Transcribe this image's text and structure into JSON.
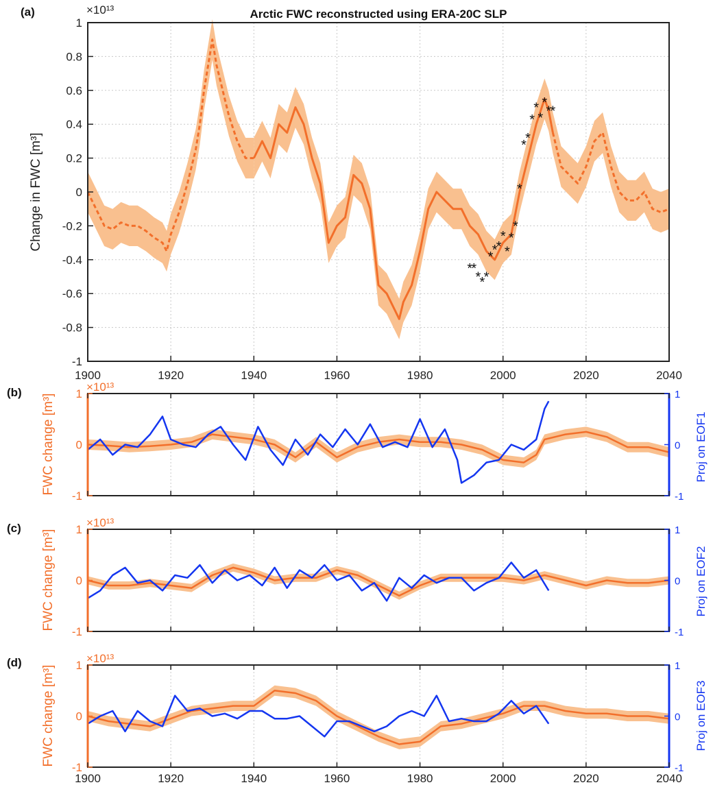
{
  "colors": {
    "fwc": "#f26f2b",
    "fwc_band": "#f9c08f",
    "proj": "#1436f0",
    "axis": "#222222",
    "grid": "#c8c8c8",
    "marker": "#111111"
  },
  "chart_data": [
    {
      "panel": "(a)",
      "type": "line",
      "title": "Arctic FWC reconstructed using ERA-20C SLP",
      "ylabel": "Change in FWC [m³]",
      "yexponent": "×10¹³",
      "xlim": [
        1900,
        2040
      ],
      "ylim": [
        -1,
        1
      ],
      "xticks": [
        1900,
        1920,
        1940,
        1960,
        1980,
        2000,
        2020,
        2040
      ],
      "yticks": [
        -1,
        -0.8,
        -0.6,
        -0.4,
        -0.2,
        0,
        0.2,
        0.4,
        0.6,
        0.8,
        1
      ],
      "ytick_labels": [
        "-1",
        "-0.8",
        "-0.6",
        "-0.4",
        "-0.2",
        "0",
        "0.2",
        "0.4",
        "0.6",
        "0.8",
        "1"
      ],
      "grid": true,
      "band_halfwidth": 0.12,
      "series": [
        {
          "style": "dashed",
          "x": [
            1900,
            1902,
            1904,
            1906,
            1908,
            1910,
            1912,
            1914,
            1916,
            1918,
            1919,
            1920,
            1922,
            1924,
            1926,
            1927,
            1928,
            1929,
            1930,
            1931,
            1932,
            1934,
            1936,
            1938,
            1940
          ],
          "y": [
            0.0,
            -0.1,
            -0.2,
            -0.22,
            -0.18,
            -0.2,
            -0.2,
            -0.23,
            -0.27,
            -0.3,
            -0.35,
            -0.25,
            -0.12,
            0.05,
            0.25,
            0.4,
            0.6,
            0.75,
            0.9,
            0.75,
            0.65,
            0.45,
            0.3,
            0.2,
            0.2
          ]
        },
        {
          "style": "solid",
          "x": [
            1940,
            1942,
            1944,
            1946,
            1948,
            1950,
            1952,
            1954,
            1956,
            1958,
            1960,
            1962,
            1964,
            1966,
            1968,
            1970,
            1972,
            1974,
            1975,
            1976,
            1978,
            1980,
            1982,
            1984,
            1986,
            1988,
            1990,
            1992,
            1994,
            1996,
            1998,
            2000,
            2002,
            2004,
            2006,
            2008,
            2010,
            2011,
            2012
          ],
          "y": [
            0.2,
            0.3,
            0.2,
            0.4,
            0.35,
            0.5,
            0.4,
            0.2,
            0.05,
            -0.3,
            -0.2,
            -0.15,
            0.1,
            0.05,
            -0.1,
            -0.55,
            -0.6,
            -0.7,
            -0.75,
            -0.65,
            -0.55,
            -0.35,
            -0.1,
            0.0,
            -0.05,
            -0.1,
            -0.1,
            -0.2,
            -0.25,
            -0.35,
            -0.4,
            -0.3,
            -0.25,
            0.0,
            0.2,
            0.4,
            0.55,
            0.48,
            0.35
          ]
        },
        {
          "style": "dashed",
          "x": [
            2012,
            2014,
            2016,
            2018,
            2020,
            2022,
            2024,
            2026,
            2028,
            2030,
            2032,
            2034,
            2036,
            2038,
            2040
          ],
          "y": [
            0.35,
            0.15,
            0.1,
            0.05,
            0.15,
            0.3,
            0.35,
            0.15,
            0.0,
            -0.05,
            -0.05,
            0.0,
            -0.1,
            -0.12,
            -0.1
          ]
        }
      ],
      "markers": {
        "symbol": "*",
        "x": [
          1992,
          1993,
          1994,
          1995,
          1996,
          1997,
          1998,
          1999,
          2000,
          2001,
          2002,
          2003,
          2004,
          2005,
          2006,
          2007,
          2008,
          2009,
          2010,
          2011,
          2012
        ],
        "y": [
          -0.45,
          -0.45,
          -0.5,
          -0.53,
          -0.5,
          -0.38,
          -0.34,
          -0.32,
          -0.26,
          -0.35,
          -0.27,
          -0.2,
          0.02,
          0.28,
          0.32,
          0.43,
          0.5,
          0.44,
          0.53,
          0.48,
          0.48
        ]
      }
    },
    {
      "panel": "(b)",
      "type": "line",
      "xlim": [
        1900,
        2040
      ],
      "xticks": [
        1900,
        1920,
        1940,
        1960,
        1980,
        2000,
        2020,
        2040
      ],
      "left_axis": {
        "label": "FWC change [m³]",
        "exponent": "×10¹³",
        "ylim": [
          -1,
          1
        ],
        "ticks": [
          -1,
          0,
          1
        ],
        "tick_labels": [
          "-1",
          "0",
          "1"
        ]
      },
      "right_axis": {
        "label": "Proj on EOF1",
        "ylim": [
          -1,
          1
        ],
        "ticks": [
          -1,
          0,
          1
        ],
        "tick_labels": [
          "-1",
          "0",
          "1"
        ]
      },
      "band_halfwidth": 0.1,
      "fwc": {
        "x": [
          1900,
          1905,
          1910,
          1915,
          1920,
          1925,
          1930,
          1935,
          1940,
          1945,
          1950,
          1955,
          1960,
          1965,
          1970,
          1975,
          1980,
          1985,
          1990,
          1995,
          2000,
          2005,
          2008,
          2010,
          2015,
          2020,
          2025,
          2030,
          2035,
          2040
        ],
        "y": [
          0.0,
          -0.02,
          -0.05,
          -0.03,
          0.0,
          0.05,
          0.2,
          0.15,
          0.1,
          0.0,
          -0.25,
          0.05,
          -0.25,
          -0.05,
          0.05,
          0.1,
          0.05,
          0.05,
          0.0,
          -0.1,
          -0.3,
          -0.35,
          -0.2,
          0.1,
          0.2,
          0.25,
          0.15,
          -0.05,
          -0.05,
          -0.15
        ]
      },
      "proj": {
        "x": [
          1900,
          1903,
          1906,
          1909,
          1912,
          1915,
          1918,
          1920,
          1923,
          1926,
          1929,
          1932,
          1935,
          1938,
          1941,
          1944,
          1947,
          1950,
          1953,
          1956,
          1959,
          1962,
          1965,
          1968,
          1971,
          1974,
          1977,
          1980,
          1983,
          1986,
          1989,
          1990,
          1993,
          1996,
          1999,
          2002,
          2005,
          2008,
          2010,
          2011
        ],
        "y": [
          -0.1,
          0.1,
          -0.2,
          0.0,
          -0.05,
          0.2,
          0.55,
          0.1,
          0.0,
          -0.05,
          0.2,
          0.35,
          0.0,
          -0.3,
          0.35,
          -0.1,
          -0.4,
          0.1,
          -0.2,
          0.2,
          -0.05,
          0.3,
          0.0,
          0.4,
          -0.05,
          0.05,
          -0.05,
          0.5,
          -0.05,
          0.3,
          -0.3,
          -0.75,
          -0.6,
          -0.35,
          -0.3,
          0.0,
          -0.1,
          0.1,
          0.7,
          0.85
        ]
      }
    },
    {
      "panel": "(c)",
      "type": "line",
      "xlim": [
        1900,
        2040
      ],
      "xticks": [
        1900,
        1920,
        1940,
        1960,
        1980,
        2000,
        2020,
        2040
      ],
      "left_axis": {
        "label": "FWC change [m³]",
        "exponent": "×10¹³",
        "ylim": [
          -1,
          1
        ],
        "ticks": [
          -1,
          0,
          1
        ],
        "tick_labels": [
          "-1",
          "0",
          "1"
        ]
      },
      "right_axis": {
        "label": "Proj on EOF2",
        "ylim": [
          -1,
          1
        ],
        "ticks": [
          -1,
          0,
          1
        ],
        "tick_labels": [
          "-1",
          "0",
          "1"
        ]
      },
      "band_halfwidth": 0.08,
      "fwc": {
        "x": [
          1900,
          1905,
          1910,
          1915,
          1920,
          1925,
          1930,
          1935,
          1940,
          1945,
          1950,
          1955,
          1960,
          1965,
          1970,
          1975,
          1980,
          1985,
          1990,
          1995,
          2000,
          2005,
          2010,
          2015,
          2020,
          2025,
          2030,
          2035,
          2040
        ],
        "y": [
          0.0,
          -0.1,
          -0.1,
          -0.05,
          -0.1,
          -0.15,
          0.1,
          0.25,
          0.15,
          0.0,
          0.05,
          0.05,
          0.2,
          0.1,
          -0.1,
          -0.3,
          -0.1,
          0.05,
          0.05,
          0.05,
          0.05,
          0.0,
          0.1,
          0.0,
          -0.1,
          0.0,
          -0.05,
          -0.05,
          0.0
        ]
      },
      "proj": {
        "x": [
          1900,
          1903,
          1906,
          1909,
          1912,
          1915,
          1918,
          1921,
          1924,
          1927,
          1930,
          1933,
          1936,
          1939,
          1942,
          1945,
          1948,
          1951,
          1954,
          1957,
          1960,
          1963,
          1966,
          1969,
          1972,
          1975,
          1978,
          1981,
          1984,
          1987,
          1990,
          1993,
          1996,
          1999,
          2002,
          2005,
          2008,
          2011
        ],
        "y": [
          -0.35,
          -0.2,
          0.1,
          0.25,
          -0.05,
          0.0,
          -0.2,
          0.1,
          0.05,
          0.3,
          -0.05,
          0.2,
          0.0,
          0.1,
          -0.1,
          0.25,
          -0.15,
          0.2,
          0.05,
          0.3,
          0.0,
          0.1,
          -0.2,
          -0.05,
          -0.4,
          0.05,
          -0.15,
          0.1,
          -0.05,
          0.05,
          0.05,
          -0.2,
          -0.05,
          0.05,
          0.35,
          0.05,
          0.2,
          -0.2
        ]
      }
    },
    {
      "panel": "(d)",
      "type": "line",
      "xlim": [
        1900,
        2040
      ],
      "xticks": [
        1900,
        1920,
        1940,
        1960,
        1980,
        2000,
        2020,
        2040
      ],
      "xtick_labels": [
        "1900",
        "1920",
        "1940",
        "1960",
        "1980",
        "2000",
        "2020",
        "2040"
      ],
      "left_axis": {
        "label": "FWC change [m³]",
        "exponent": "×10¹³",
        "ylim": [
          -1,
          1
        ],
        "ticks": [
          -1,
          0,
          1
        ],
        "tick_labels": [
          "-1",
          "0",
          "1"
        ]
      },
      "right_axis": {
        "label": "Proj on EOF3",
        "ylim": [
          -1,
          1
        ],
        "ticks": [
          -1,
          0,
          1
        ],
        "tick_labels": [
          "-1",
          "0",
          "1"
        ]
      },
      "band_halfwidth": 0.1,
      "fwc": {
        "x": [
          1900,
          1905,
          1910,
          1915,
          1920,
          1925,
          1930,
          1935,
          1940,
          1945,
          1950,
          1955,
          1960,
          1965,
          1970,
          1975,
          1980,
          1985,
          1990,
          1995,
          2000,
          2005,
          2010,
          2015,
          2020,
          2025,
          2030,
          2035,
          2040
        ],
        "y": [
          0.0,
          -0.1,
          -0.15,
          -0.2,
          -0.05,
          0.1,
          0.15,
          0.2,
          0.2,
          0.5,
          0.45,
          0.3,
          0.0,
          -0.2,
          -0.4,
          -0.55,
          -0.5,
          -0.2,
          -0.15,
          -0.05,
          0.05,
          0.2,
          0.2,
          0.1,
          0.05,
          0.05,
          0.0,
          0.0,
          -0.05
        ]
      },
      "proj": {
        "x": [
          1900,
          1903,
          1906,
          1909,
          1912,
          1915,
          1918,
          1921,
          1924,
          1927,
          1930,
          1933,
          1936,
          1939,
          1942,
          1945,
          1948,
          1951,
          1954,
          1957,
          1960,
          1963,
          1966,
          1969,
          1972,
          1975,
          1978,
          1981,
          1984,
          1987,
          1990,
          1993,
          1996,
          1999,
          2002,
          2005,
          2008,
          2011
        ],
        "y": [
          -0.15,
          0.0,
          0.1,
          -0.3,
          0.1,
          -0.1,
          -0.2,
          0.4,
          0.1,
          0.15,
          0.0,
          0.05,
          -0.05,
          0.1,
          0.1,
          -0.05,
          -0.05,
          0.0,
          -0.2,
          -0.4,
          -0.1,
          -0.1,
          -0.2,
          -0.3,
          -0.2,
          0.0,
          0.1,
          0.0,
          0.4,
          -0.1,
          -0.05,
          -0.1,
          -0.1,
          0.05,
          0.3,
          0.05,
          0.2,
          -0.15
        ]
      }
    }
  ]
}
